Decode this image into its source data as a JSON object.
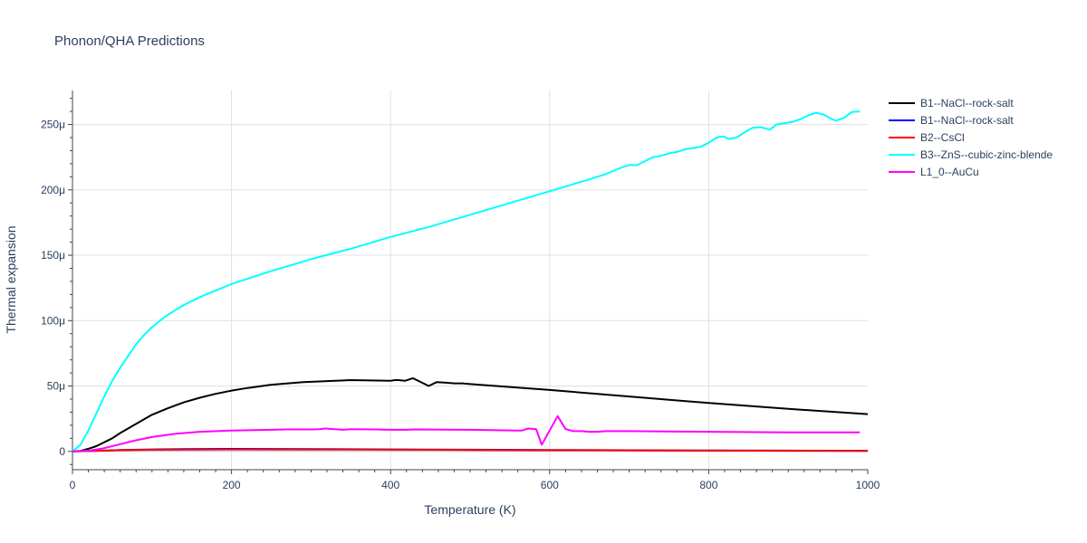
{
  "chart_data": {
    "type": "line",
    "title": "Phonon/QHA Predictions",
    "xlabel": "Temperature (K)",
    "ylabel": "Thermal expansion",
    "xlim": [
      0,
      1000
    ],
    "ylim": [
      -14,
      276
    ],
    "x_ticks": [
      0,
      200,
      400,
      600,
      800,
      1000
    ],
    "x_tick_labels": [
      "0",
      "200",
      "400",
      "600",
      "800",
      "1000"
    ],
    "y_ticks": [
      0,
      50,
      100,
      150,
      200,
      250
    ],
    "y_tick_labels": [
      "0",
      "50μ",
      "100μ",
      "150μ",
      "200μ",
      "250μ"
    ],
    "grid": true,
    "legend_position": "top-right",
    "series": [
      {
        "name": "B1--NaCl--rock-salt",
        "color": "#000000",
        "points": [
          [
            0,
            0
          ],
          [
            10,
            0.3
          ],
          [
            20,
            2
          ],
          [
            30,
            4
          ],
          [
            40,
            7
          ],
          [
            50,
            10
          ],
          [
            60,
            14
          ],
          [
            80,
            21
          ],
          [
            100,
            28
          ],
          [
            120,
            33
          ],
          [
            140,
            37.5
          ],
          [
            160,
            41
          ],
          [
            180,
            44
          ],
          [
            200,
            46.5
          ],
          [
            220,
            48.5
          ],
          [
            250,
            51
          ],
          [
            290,
            53
          ],
          [
            350,
            54.5
          ],
          [
            400,
            54
          ],
          [
            405,
            54.5
          ],
          [
            410,
            54.5
          ],
          [
            418,
            54
          ],
          [
            428,
            56
          ],
          [
            448,
            50
          ],
          [
            458,
            53
          ],
          [
            470,
            52.5
          ],
          [
            480,
            52
          ],
          [
            490,
            52
          ],
          [
            500,
            51.5
          ],
          [
            600,
            47
          ],
          [
            700,
            42
          ],
          [
            800,
            37
          ],
          [
            900,
            32.5
          ],
          [
            1000,
            28.5
          ]
        ]
      },
      {
        "name": "B1--NaCl--rock-salt",
        "color": "#0000ff",
        "points": [
          [
            0,
            0
          ],
          [
            10,
            0.1
          ],
          [
            30,
            0.5
          ],
          [
            60,
            1
          ],
          [
            100,
            1.5
          ],
          [
            140,
            1.8
          ],
          [
            200,
            1.9
          ],
          [
            300,
            1.7
          ],
          [
            400,
            1.5
          ],
          [
            500,
            1.3
          ],
          [
            600,
            1.1
          ],
          [
            700,
            0.9
          ],
          [
            800,
            0.7
          ],
          [
            900,
            0.6
          ],
          [
            1000,
            0.5
          ]
        ]
      },
      {
        "name": "B2--CsCl",
        "color": "#ff0000",
        "points": [
          [
            0,
            0
          ],
          [
            20,
            0.3
          ],
          [
            50,
            0.8
          ],
          [
            100,
            1.2
          ],
          [
            200,
            1.5
          ],
          [
            300,
            1.4
          ],
          [
            400,
            1.3
          ],
          [
            500,
            1.1
          ],
          [
            600,
            0.9
          ],
          [
            700,
            0.8
          ],
          [
            800,
            0.6
          ],
          [
            900,
            0.5
          ],
          [
            1000,
            0.4
          ]
        ]
      },
      {
        "name": "B3--ZnS--cubic-zinc-blende",
        "color": "#00ffff",
        "points": [
          [
            0,
            0
          ],
          [
            10,
            5
          ],
          [
            20,
            16
          ],
          [
            30,
            29
          ],
          [
            40,
            42
          ],
          [
            50,
            54
          ],
          [
            60,
            64
          ],
          [
            70,
            73
          ],
          [
            80,
            82
          ],
          [
            90,
            89
          ],
          [
            100,
            95
          ],
          [
            110,
            100
          ],
          [
            120,
            104.5
          ],
          [
            140,
            112
          ],
          [
            160,
            118
          ],
          [
            180,
            123
          ],
          [
            200,
            128
          ],
          [
            250,
            138
          ],
          [
            300,
            147
          ],
          [
            350,
            155
          ],
          [
            400,
            164
          ],
          [
            450,
            172
          ],
          [
            500,
            181
          ],
          [
            550,
            190
          ],
          [
            600,
            199
          ],
          [
            650,
            208
          ],
          [
            670,
            212
          ],
          [
            690,
            217
          ],
          [
            700,
            219
          ],
          [
            710,
            219
          ],
          [
            720,
            222
          ],
          [
            730,
            225
          ],
          [
            740,
            226
          ],
          [
            750,
            228
          ],
          [
            760,
            229
          ],
          [
            770,
            231
          ],
          [
            780,
            232
          ],
          [
            790,
            233
          ],
          [
            800,
            236
          ],
          [
            810,
            240
          ],
          [
            818,
            241
          ],
          [
            825,
            239
          ],
          [
            835,
            240
          ],
          [
            845,
            244
          ],
          [
            855,
            247.5
          ],
          [
            865,
            248
          ],
          [
            877,
            246
          ],
          [
            885,
            250
          ],
          [
            895,
            251
          ],
          [
            905,
            252
          ],
          [
            915,
            254
          ],
          [
            925,
            257
          ],
          [
            935,
            259
          ],
          [
            945,
            257.5
          ],
          [
            955,
            254
          ],
          [
            960,
            253
          ],
          [
            970,
            255
          ],
          [
            980,
            259.5
          ],
          [
            990,
            260
          ]
        ]
      },
      {
        "name": "L1_0--AuCu",
        "color": "#ff00ff",
        "points": [
          [
            0,
            0
          ],
          [
            20,
            0.5
          ],
          [
            40,
            2.5
          ],
          [
            60,
            5.5
          ],
          [
            80,
            8.5
          ],
          [
            100,
            11
          ],
          [
            130,
            13.5
          ],
          [
            160,
            15
          ],
          [
            200,
            16
          ],
          [
            250,
            16.5
          ],
          [
            270,
            16.8
          ],
          [
            300,
            16.8
          ],
          [
            310,
            17
          ],
          [
            318,
            17.5
          ],
          [
            330,
            17
          ],
          [
            340,
            16.5
          ],
          [
            350,
            17
          ],
          [
            380,
            16.8
          ],
          [
            400,
            16.5
          ],
          [
            420,
            16.5
          ],
          [
            430,
            16.8
          ],
          [
            500,
            16.5
          ],
          [
            560,
            16
          ],
          [
            565,
            16
          ],
          [
            573,
            17.5
          ],
          [
            583,
            17
          ],
          [
            590,
            5
          ],
          [
            600,
            16
          ],
          [
            610,
            27
          ],
          [
            620,
            17
          ],
          [
            630,
            15.5
          ],
          [
            640,
            15.5
          ],
          [
            650,
            15
          ],
          [
            660,
            15
          ],
          [
            670,
            15.5
          ],
          [
            700,
            15.5
          ],
          [
            800,
            15
          ],
          [
            900,
            14.5
          ],
          [
            990,
            14.5
          ]
        ]
      }
    ]
  }
}
